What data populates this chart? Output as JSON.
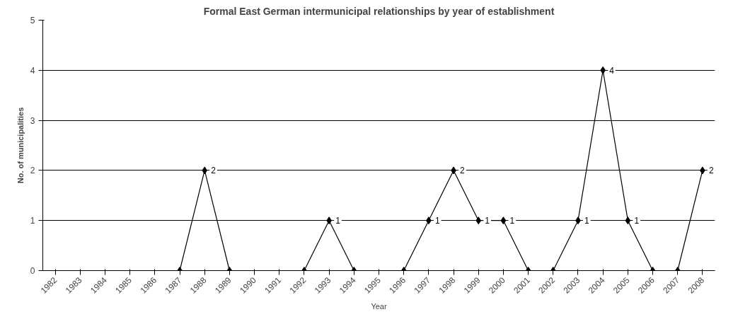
{
  "chart_data": {
    "type": "line",
    "title": "Formal East German intermunicipal relationships by year of establishment",
    "xlabel": "Year",
    "ylabel": "No. of municipalities",
    "categories": [
      "1982",
      "1983",
      "1984",
      "1985",
      "1986",
      "1987",
      "1988",
      "1989",
      "1990",
      "1991",
      "1992",
      "1993",
      "1994",
      "1995",
      "1996",
      "1997",
      "1998",
      "1999",
      "2000",
      "2001",
      "2002",
      "2003",
      "2004",
      "2005",
      "2006",
      "2007",
      "2008"
    ],
    "series": [
      {
        "color": "#000000",
        "values": [
          null,
          null,
          null,
          null,
          null,
          0,
          2,
          0,
          null,
          null,
          0,
          1,
          0,
          null,
          0,
          1,
          2,
          1,
          1,
          0,
          0,
          1,
          4,
          1,
          0,
          0,
          2
        ],
        "value_labels": [
          null,
          null,
          null,
          null,
          null,
          null,
          "2",
          null,
          null,
          null,
          null,
          "1",
          null,
          null,
          null,
          "1",
          "2",
          "1",
          "1",
          null,
          null,
          "1",
          "4",
          "1",
          null,
          null,
          "2"
        ]
      }
    ],
    "ylim": [
      0,
      5
    ],
    "yticks": [
      0,
      1,
      2,
      3,
      4,
      5
    ],
    "grid": "y",
    "marker": "diamond",
    "line_style": "solid"
  }
}
